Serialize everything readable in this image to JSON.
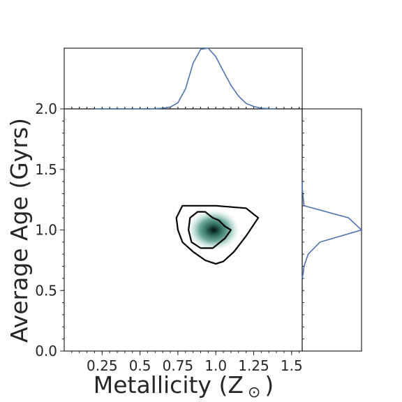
{
  "chart_data": {
    "type": "joint-kde",
    "xlabel": "Metallicity (Z",
    "xlabel_symbol": "⊙",
    "xlabel_close": ")",
    "ylabel": "Average Age (Gyrs)",
    "xlim": [
      0.0,
      1.57
    ],
    "ylim": [
      0.0,
      2.0
    ],
    "xticks": [
      "0.25",
      "0.5",
      "0.75",
      "1.0",
      "1.25",
      "1.5"
    ],
    "yticks": [
      "0.0",
      "0.5",
      "1.0",
      "1.5",
      "2.0"
    ],
    "grid": false,
    "colors": {
      "density": "#2e7d6b",
      "line": "#4c72b0",
      "contour": "#000000"
    },
    "density_peak": {
      "x": 1.0,
      "y": 1.0
    },
    "contours": [
      {
        "level": "outer",
        "points": [
          [
            0.78,
            1.2
          ],
          [
            1.0,
            1.2
          ],
          [
            1.2,
            1.18
          ],
          [
            1.28,
            1.1
          ],
          [
            1.2,
            0.95
          ],
          [
            1.12,
            0.82
          ],
          [
            1.05,
            0.74
          ],
          [
            1.0,
            0.72
          ],
          [
            0.93,
            0.75
          ],
          [
            0.85,
            0.82
          ],
          [
            0.78,
            0.9
          ],
          [
            0.75,
            1.0
          ],
          [
            0.74,
            1.1
          ]
        ]
      },
      {
        "level": "inner",
        "points": [
          [
            0.83,
            1.1
          ],
          [
            0.88,
            1.15
          ],
          [
            0.93,
            1.15
          ],
          [
            0.98,
            1.1
          ],
          [
            1.02,
            1.08
          ],
          [
            1.06,
            1.03
          ],
          [
            1.1,
            1.0
          ],
          [
            1.06,
            0.93
          ],
          [
            1.0,
            0.87
          ],
          [
            0.98,
            0.85
          ],
          [
            0.9,
            0.85
          ],
          [
            0.84,
            0.9
          ],
          [
            0.82,
            1.0
          ]
        ]
      }
    ],
    "x_marginal": {
      "x": [
        0.2,
        0.3,
        0.4,
        0.5,
        0.6,
        0.65,
        0.7,
        0.75,
        0.8,
        0.85,
        0.9,
        0.95,
        1.0,
        1.05,
        1.1,
        1.15,
        1.2,
        1.25,
        1.3,
        1.35,
        1.4
      ],
      "density": [
        0.0,
        0.0,
        0.0,
        0.0,
        0.003,
        0.01,
        0.03,
        0.1,
        0.33,
        0.75,
        0.98,
        1.0,
        0.86,
        0.62,
        0.39,
        0.21,
        0.09,
        0.04,
        0.01,
        0.003,
        0.0
      ]
    },
    "y_marginal": {
      "y": [
        0.6,
        0.65,
        0.7,
        0.8,
        0.9,
        1.0,
        1.1,
        1.2,
        1.3,
        1.35,
        1.4
      ],
      "density": [
        0.0,
        0.02,
        0.03,
        0.1,
        0.3,
        1.0,
        0.78,
        0.03,
        0.01,
        0.0,
        0.0
      ]
    }
  }
}
